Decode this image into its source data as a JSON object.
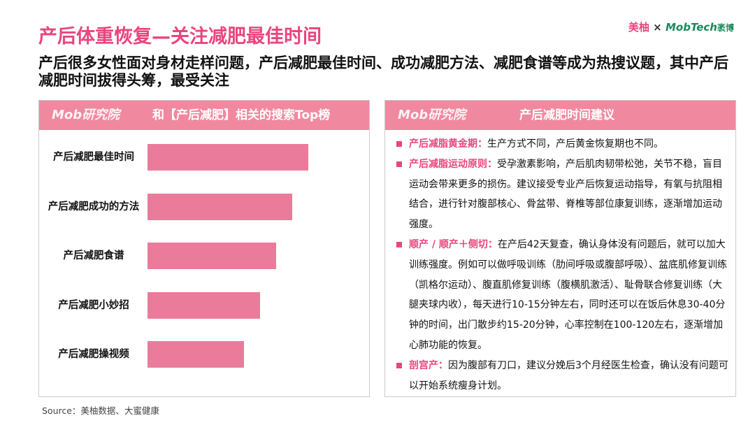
{
  "header": {
    "title": "产后体重恢复—关注减肥最佳时间",
    "subtitle": "产后很多女性面对身材走样问题，产后减肥最佳时间、成功减肥方法、减肥食谱等成为热搜议题，其中产后减肥时间拔得头筹，最受关注",
    "logo_left": "美柚",
    "times": "×",
    "logo_right": "MobTech",
    "logo_right_cn": "袤博"
  },
  "left_panel": {
    "brand": "Mob研究院",
    "heading": "和【产后减肥】相关的搜索Top榜"
  },
  "chart_data": {
    "type": "bar",
    "orientation": "horizontal",
    "categories": [
      "产后减肥最佳时间",
      "产后减肥成功的方法",
      "产后减肥食谱",
      "产后减肥小妙招",
      "产后减肥操视频"
    ],
    "values": [
      100,
      90,
      80,
      70,
      60
    ],
    "color": "#ea7b9b"
  },
  "right_panel": {
    "brand": "Mob研究院",
    "heading": "产后减肥时间建议",
    "items": [
      {
        "label": "产后减脂黄金期：",
        "text": "生产方式不同，产后黄金恢复期也不同。"
      },
      {
        "label": "产后减脂运动原则：",
        "text": "受孕激素影响，产后肌肉韧带松弛，关节不稳，盲目运动会带来更多的损伤。建议接受专业产后恢复运动指导，有氧与抗阻相结合，进行针对腹部核心、骨盆带、脊椎等部位康复训练，逐渐增加运动强度。"
      },
      {
        "label": "顺产 / 顺产＋侧切：",
        "text": "在产后42天复查，确认身体没有问题后，就可以加大训练强度。例如可以做呼吸训练（肋间呼吸或腹部呼吸）、盆底肌修复训练（凯格尔运动）、腹直肌修复训练（腹横肌激活）、耻骨联合修复训练（大腿夹球内收），每天进行10-15分钟左右，同时还可以在饭后休息30-40分钟的时间，出门散步约15-20分钟，心率控制在100-120左右，逐渐增加心肺功能的恢复。"
      },
      {
        "label": "剖宫产：",
        "text": "因为腹部有刀口，建议分娩后3个月经医生检查，确认没有问题可以开始系统瘦身计划。"
      }
    ]
  },
  "source": "Source：美柚数据、大蜜健康"
}
